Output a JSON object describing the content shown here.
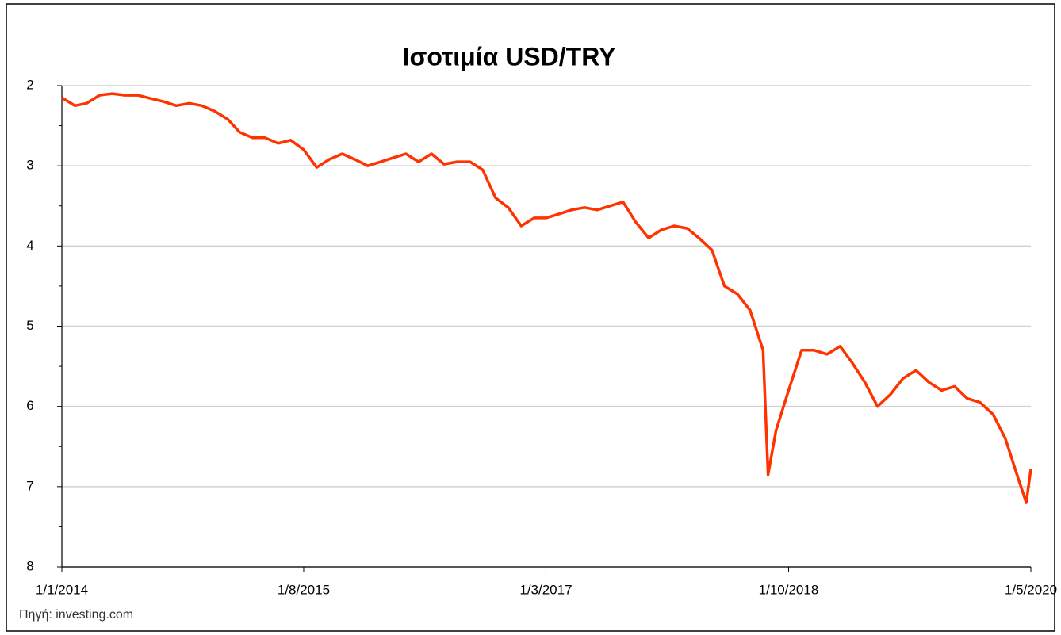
{
  "chart_data": {
    "type": "line",
    "title": "Ισοτιμία USD/TRY",
    "source": "Πηγή: investing.com",
    "x": [
      "2014-01-01",
      "2014-02-01",
      "2014-03-01",
      "2014-04-01",
      "2014-05-01",
      "2014-06-01",
      "2014-07-01",
      "2014-08-01",
      "2014-09-01",
      "2014-10-01",
      "2014-11-01",
      "2014-12-01",
      "2015-01-01",
      "2015-02-01",
      "2015-03-01",
      "2015-04-01",
      "2015-05-01",
      "2015-06-01",
      "2015-07-01",
      "2015-08-01",
      "2015-09-01",
      "2015-10-01",
      "2015-11-01",
      "2015-12-01",
      "2016-01-01",
      "2016-02-01",
      "2016-03-01",
      "2016-04-01",
      "2016-05-01",
      "2016-06-01",
      "2016-07-01",
      "2016-08-01",
      "2016-09-01",
      "2016-10-01",
      "2016-11-01",
      "2016-12-01",
      "2017-01-01",
      "2017-02-01",
      "2017-03-01",
      "2017-04-01",
      "2017-05-01",
      "2017-06-01",
      "2017-07-01",
      "2017-08-01",
      "2017-09-01",
      "2017-10-01",
      "2017-11-01",
      "2017-12-01",
      "2018-01-01",
      "2018-02-01",
      "2018-03-01",
      "2018-04-01",
      "2018-05-01",
      "2018-06-01",
      "2018-07-01",
      "2018-08-01",
      "2018-08-13",
      "2018-09-01",
      "2018-10-01",
      "2018-11-01",
      "2018-12-01",
      "2019-01-01",
      "2019-02-01",
      "2019-03-01",
      "2019-04-01",
      "2019-05-01",
      "2019-06-01",
      "2019-07-01",
      "2019-08-01",
      "2019-09-01",
      "2019-10-01",
      "2019-11-01",
      "2019-12-01",
      "2020-01-01",
      "2020-02-01",
      "2020-03-01",
      "2020-04-01",
      "2020-04-20",
      "2020-05-01"
    ],
    "series": [
      {
        "name": "USD/TRY",
        "color": "#ff3300",
        "values": [
          2.15,
          2.25,
          2.22,
          2.12,
          2.1,
          2.12,
          2.12,
          2.16,
          2.2,
          2.25,
          2.22,
          2.25,
          2.32,
          2.42,
          2.58,
          2.65,
          2.65,
          2.72,
          2.68,
          2.8,
          3.02,
          2.92,
          2.85,
          2.92,
          3.0,
          2.95,
          2.9,
          2.85,
          2.95,
          2.85,
          2.98,
          2.95,
          2.95,
          3.05,
          3.4,
          3.52,
          3.75,
          3.65,
          3.65,
          3.6,
          3.55,
          3.52,
          3.55,
          3.5,
          3.45,
          3.7,
          3.9,
          3.8,
          3.75,
          3.78,
          3.9,
          4.05,
          4.5,
          4.6,
          4.8,
          5.3,
          6.85,
          6.3,
          5.8,
          5.3,
          5.3,
          5.35,
          5.25,
          5.45,
          5.7,
          6.0,
          5.85,
          5.65,
          5.55,
          5.7,
          5.8,
          5.75,
          5.9,
          5.95,
          6.1,
          6.4,
          6.9,
          7.2,
          6.78
        ]
      }
    ],
    "ylim": [
      2,
      8
    ],
    "y_reversed": true,
    "yticks": [
      2,
      3,
      4,
      5,
      6,
      7,
      8
    ],
    "yminor_ticks": [
      2.5,
      3.5,
      4.5,
      5.5,
      6.5,
      7.5
    ],
    "grid": true,
    "xlim": [
      "2014-01-01",
      "2020-05-01"
    ],
    "xticks": [
      {
        "value": "2014-01-01",
        "label": "1/1/2014"
      },
      {
        "value": "2015-08-01",
        "label": "1/8/2015"
      },
      {
        "value": "2017-03-01",
        "label": "1/3/2017"
      },
      {
        "value": "2018-10-01",
        "label": "1/10/2018"
      },
      {
        "value": "2020-05-01",
        "label": "1/5/2020"
      }
    ]
  }
}
